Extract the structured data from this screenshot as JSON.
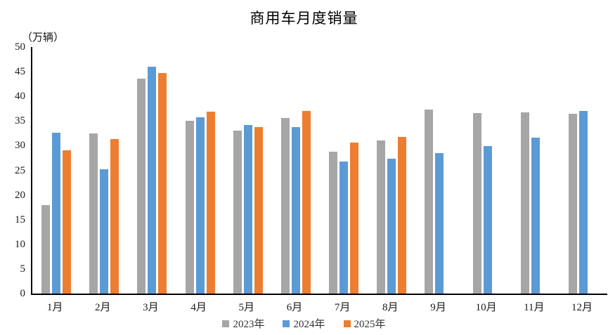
{
  "chart_data": {
    "type": "bar",
    "title": "商用车月度销量",
    "unit_label": "（万辆）",
    "categories": [
      "1月",
      "2月",
      "3月",
      "4月",
      "5月",
      "6月",
      "7月",
      "8月",
      "9月",
      "10月",
      "11月",
      "12月"
    ],
    "series": [
      {
        "name": "2023年",
        "color": "#A6A6A6",
        "values": [
          18.0,
          32.5,
          43.6,
          35.0,
          33.1,
          35.6,
          28.8,
          31.0,
          37.3,
          36.6,
          36.7,
          36.5
        ]
      },
      {
        "name": "2024年",
        "color": "#5B9BD5",
        "values": [
          32.6,
          25.2,
          46.0,
          35.8,
          34.2,
          33.8,
          26.8,
          27.3,
          28.5,
          29.9,
          31.6,
          37.1
        ]
      },
      {
        "name": "2025年",
        "color": "#ED7D31",
        "values": [
          29.0,
          31.3,
          44.8,
          36.9,
          33.7,
          37.0,
          30.6,
          31.8,
          null,
          null,
          null,
          null
        ]
      }
    ],
    "xlabel": "",
    "ylabel": "（万辆）",
    "ylim": [
      0,
      50
    ],
    "yticks": [
      0,
      5,
      10,
      15,
      20,
      25,
      30,
      35,
      40,
      45,
      50
    ],
    "grid": false,
    "legend_position": "bottom",
    "axis_color": "#000000",
    "background_color": "#ffffff"
  }
}
